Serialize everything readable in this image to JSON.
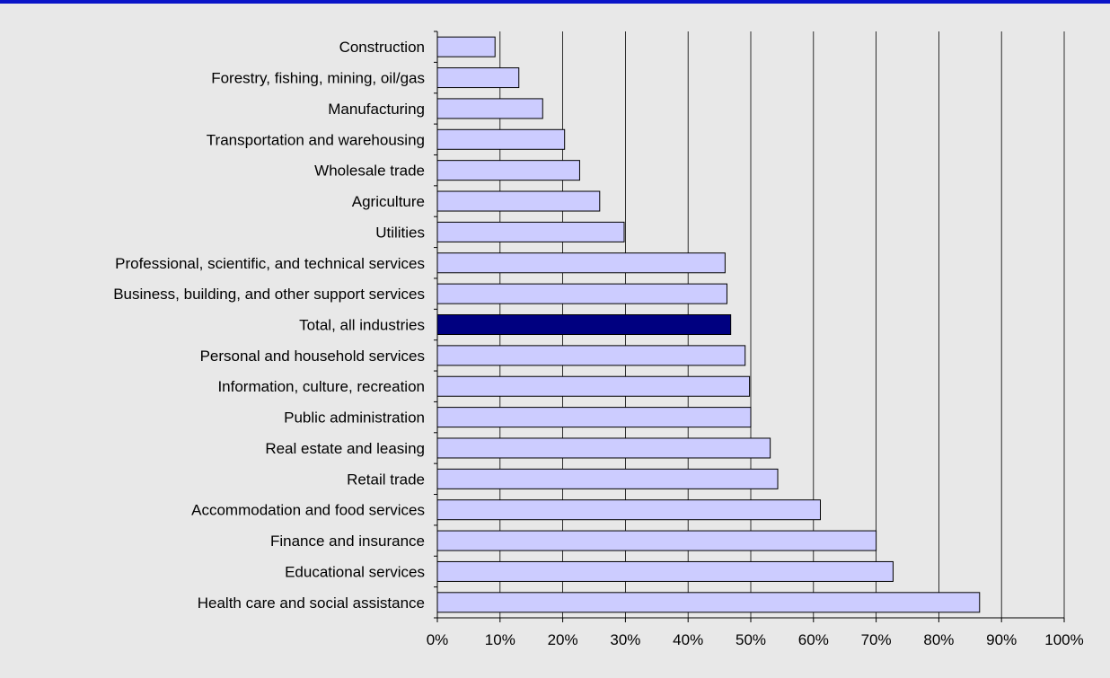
{
  "chart_data": {
    "type": "bar",
    "orientation": "horizontal",
    "title": "",
    "xlabel": "",
    "ylabel": "",
    "xlim": [
      0,
      100
    ],
    "x_ticks": [
      "0%",
      "10%",
      "20%",
      "30%",
      "40%",
      "50%",
      "60%",
      "70%",
      "80%",
      "90%",
      "100%"
    ],
    "grid": true,
    "categories": [
      "Construction",
      "Forestry, fishing, mining, oil/gas",
      "Manufacturing",
      "Transportation and warehousing",
      "Wholesale trade",
      "Agriculture",
      "Utilities",
      "Professional, scientific, and technical services",
      "Business, building, and other support services",
      "Total, all industries",
      "Personal and household services",
      "Information, culture, recreation",
      "Public administration",
      "Real estate and leasing",
      "Retail trade",
      "Accommodation and food services",
      "Finance and insurance",
      "Educational services",
      "Health care and social assistance"
    ],
    "values": [
      9.2,
      13.0,
      16.8,
      20.3,
      22.7,
      25.9,
      29.8,
      45.9,
      46.2,
      46.8,
      49.1,
      49.8,
      50.0,
      53.1,
      54.3,
      61.1,
      70.0,
      72.7,
      86.5
    ],
    "highlight_category": "Total, all industries",
    "colors": {
      "bar_fill": "#ccccff",
      "bar_highlight": "#000080",
      "bar_stroke": "#000000",
      "grid": "#000000",
      "background": "#e8e8e8",
      "top_rule": "#0a14c8"
    }
  }
}
